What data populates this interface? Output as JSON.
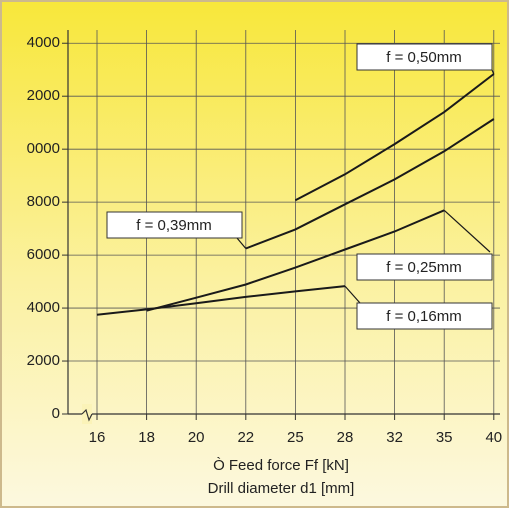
{
  "chart_data": {
    "type": "line",
    "categories": [
      16,
      18,
      20,
      22,
      25,
      28,
      32,
      35,
      40
    ],
    "xlabel": "Ò Feed force Ff [kN]",
    "xlabel2": "Drill diameter d1 [mm]",
    "ylim": [
      0,
      14500
    ],
    "yticks": [
      0,
      2000,
      4000,
      6000,
      8000,
      {
        "value": 10000,
        "label": "0000"
      },
      {
        "value": 12000,
        "label": "2000"
      },
      {
        "value": 14000,
        "label": "4000"
      }
    ],
    "grid": true,
    "series": [
      {
        "name": "f = 0,16mm",
        "color": "#1a1a1a",
        "values": [
          3750,
          3950,
          4180,
          4420,
          4630,
          4830,
          null,
          null,
          null
        ]
      },
      {
        "name": "f = 0,25mm",
        "color": "#1a1a1a",
        "values": [
          null,
          3900,
          4390,
          4890,
          5530,
          6210,
          6890,
          7690,
          null
        ]
      },
      {
        "name": "f = 0,39mm",
        "color": "#1a1a1a",
        "values": [
          null,
          null,
          null,
          6250,
          6970,
          7920,
          8860,
          9920,
          11140
        ]
      },
      {
        "name": "f = 0,50mm",
        "color": "#1a1a1a",
        "values": [
          null,
          null,
          null,
          null,
          8070,
          9050,
          10190,
          11400,
          12840
        ]
      }
    ]
  }
}
